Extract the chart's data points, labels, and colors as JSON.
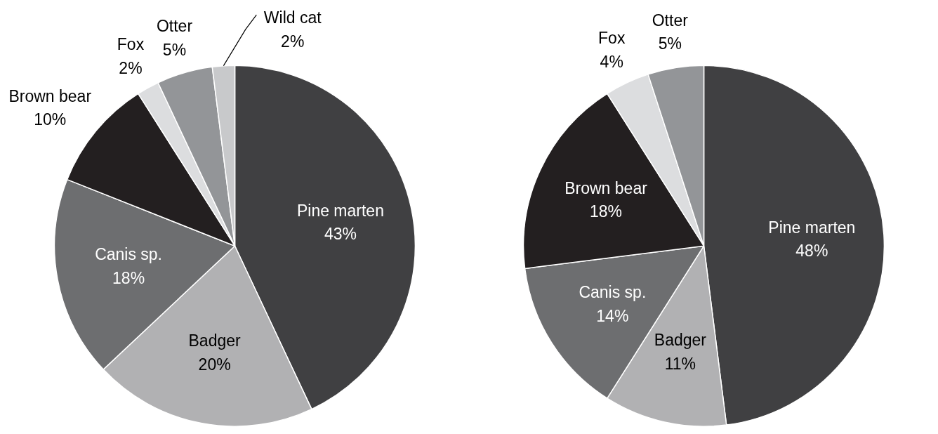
{
  "chart_data": [
    {
      "type": "pie",
      "categories": [
        "Pine marten",
        "Badger",
        "Canis sp.",
        "Brown bear",
        "Fox",
        "Otter",
        "Wild cat"
      ],
      "values": [
        43,
        20,
        18,
        10,
        2,
        5,
        2
      ],
      "colors": [
        "#404042",
        "#b1b1b3",
        "#6d6e70",
        "#231f20",
        "#dcdddf",
        "#939598",
        "#c8c9cb"
      ],
      "value_labels": [
        "43%",
        "20%",
        "18%",
        "10%",
        "2%",
        "5%",
        "2%"
      ]
    },
    {
      "type": "pie",
      "categories": [
        "Pine marten",
        "Badger",
        "Canis sp.",
        "Brown bear",
        "Fox",
        "Otter"
      ],
      "values": [
        48,
        11,
        14,
        18,
        4,
        5
      ],
      "colors": [
        "#404042",
        "#b1b1b3",
        "#6d6e70",
        "#231f20",
        "#dcdddf",
        "#939598"
      ],
      "value_labels": [
        "48%",
        "11%",
        "14%",
        "18%",
        "4%",
        "5%"
      ]
    }
  ]
}
